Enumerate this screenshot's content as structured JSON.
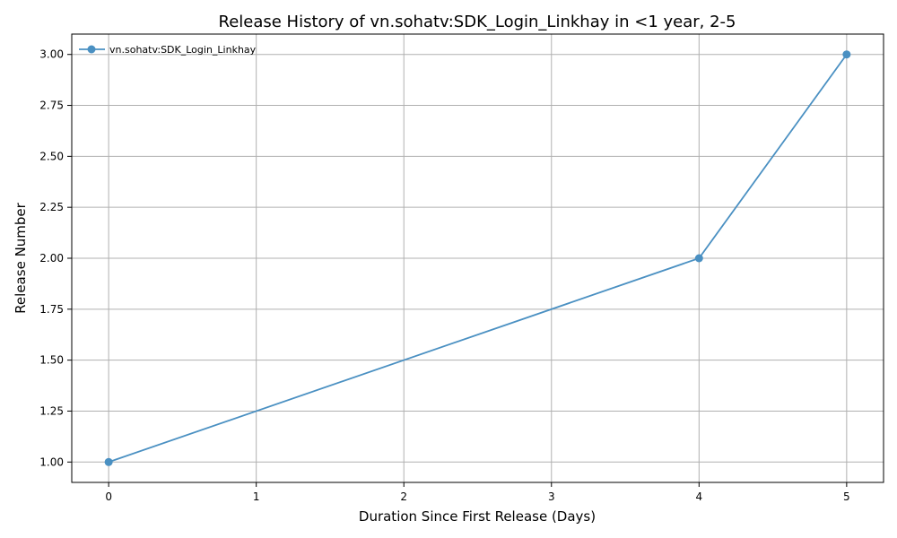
{
  "chart_data": {
    "type": "line",
    "title": "Release History of vn.sohatv:SDK_Login_Linkhay in <1 year, 2-5",
    "xlabel": "Duration Since First Release (Days)",
    "ylabel": "Release Number",
    "xlim": [
      -0.25,
      5.25
    ],
    "ylim": [
      0.9,
      3.1
    ],
    "xticks": [
      0,
      1,
      2,
      3,
      4,
      5
    ],
    "xtick_labels": [
      "0",
      "1",
      "2",
      "3",
      "4",
      "5"
    ],
    "yticks": [
      1.0,
      1.25,
      1.5,
      1.75,
      2.0,
      2.25,
      2.5,
      2.75,
      3.0
    ],
    "ytick_labels": [
      "1.00",
      "1.25",
      "1.50",
      "1.75",
      "2.00",
      "2.25",
      "2.50",
      "2.75",
      "3.00"
    ],
    "grid": true,
    "legend_position": "top-left",
    "series": [
      {
        "name": "vn.sohatv:SDK_Login_Linkhay",
        "color": "#4a90c2",
        "marker": "circle",
        "x": [
          0,
          4,
          5
        ],
        "y": [
          1,
          2,
          3
        ]
      }
    ]
  }
}
